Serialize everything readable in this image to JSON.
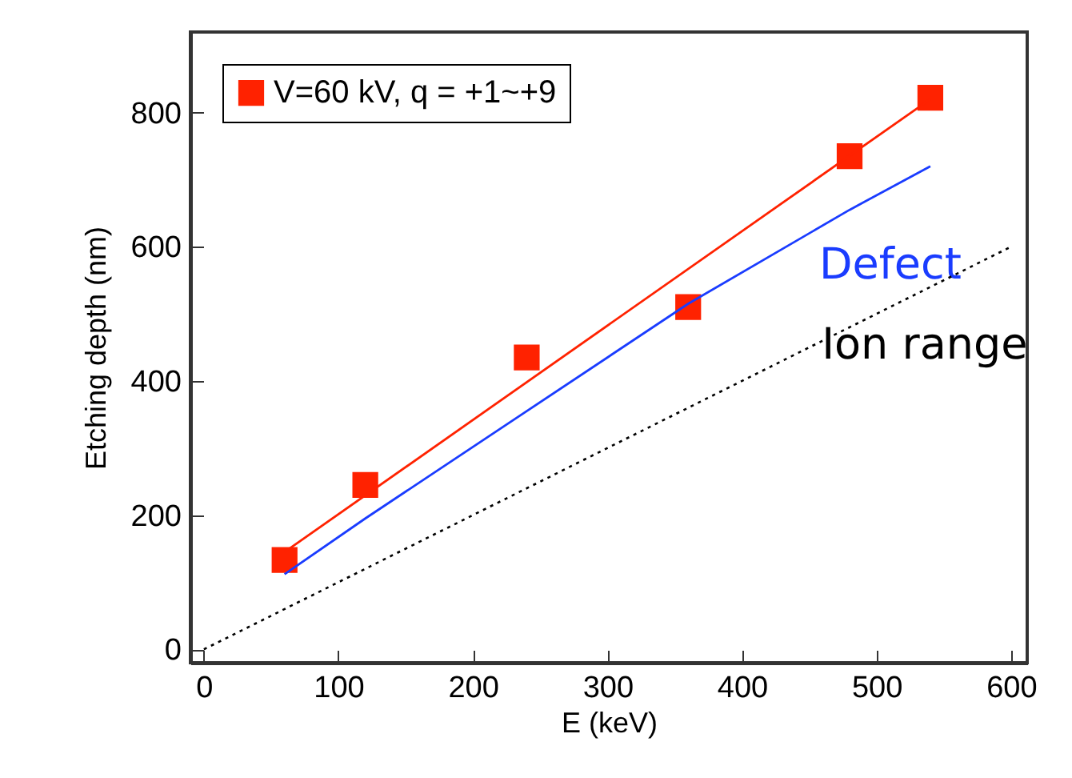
{
  "chart_data": {
    "type": "scatter",
    "xlabel": "E (keV)",
    "ylabel": "Etching depth (nm)",
    "xlim": [
      -10,
      612
    ],
    "ylim": [
      -20,
      920
    ],
    "xticks": [
      0,
      100,
      200,
      300,
      400,
      500,
      600
    ],
    "yticks": [
      0,
      200,
      400,
      600,
      800
    ],
    "legend": "top left",
    "marker": "square",
    "series": [
      {
        "name": "V=60 kV, q = +1~+9",
        "color": "#ff2200",
        "x": [
          60,
          120,
          240,
          360,
          480,
          540
        ],
        "values": [
          133,
          245,
          435,
          510,
          735,
          822
        ]
      },
      {
        "type": "line",
        "marker": "none",
        "color": "#ff2200",
        "x": [
          60,
          540
        ],
        "values": [
          145,
          820
        ]
      },
      {
        "type": "line",
        "marker": "none",
        "name": "Defect",
        "color": "#1a3cff",
        "x": [
          60,
          120,
          240,
          360,
          480,
          540
        ],
        "values": [
          112,
          195,
          355,
          515,
          655,
          720
        ]
      },
      {
        "type": "line",
        "marker": "none",
        "name": "Ion range",
        "color": "#000000",
        "line_style": "dotted",
        "x": [
          0,
          600
        ],
        "values": [
          0,
          600
        ]
      }
    ]
  }
}
